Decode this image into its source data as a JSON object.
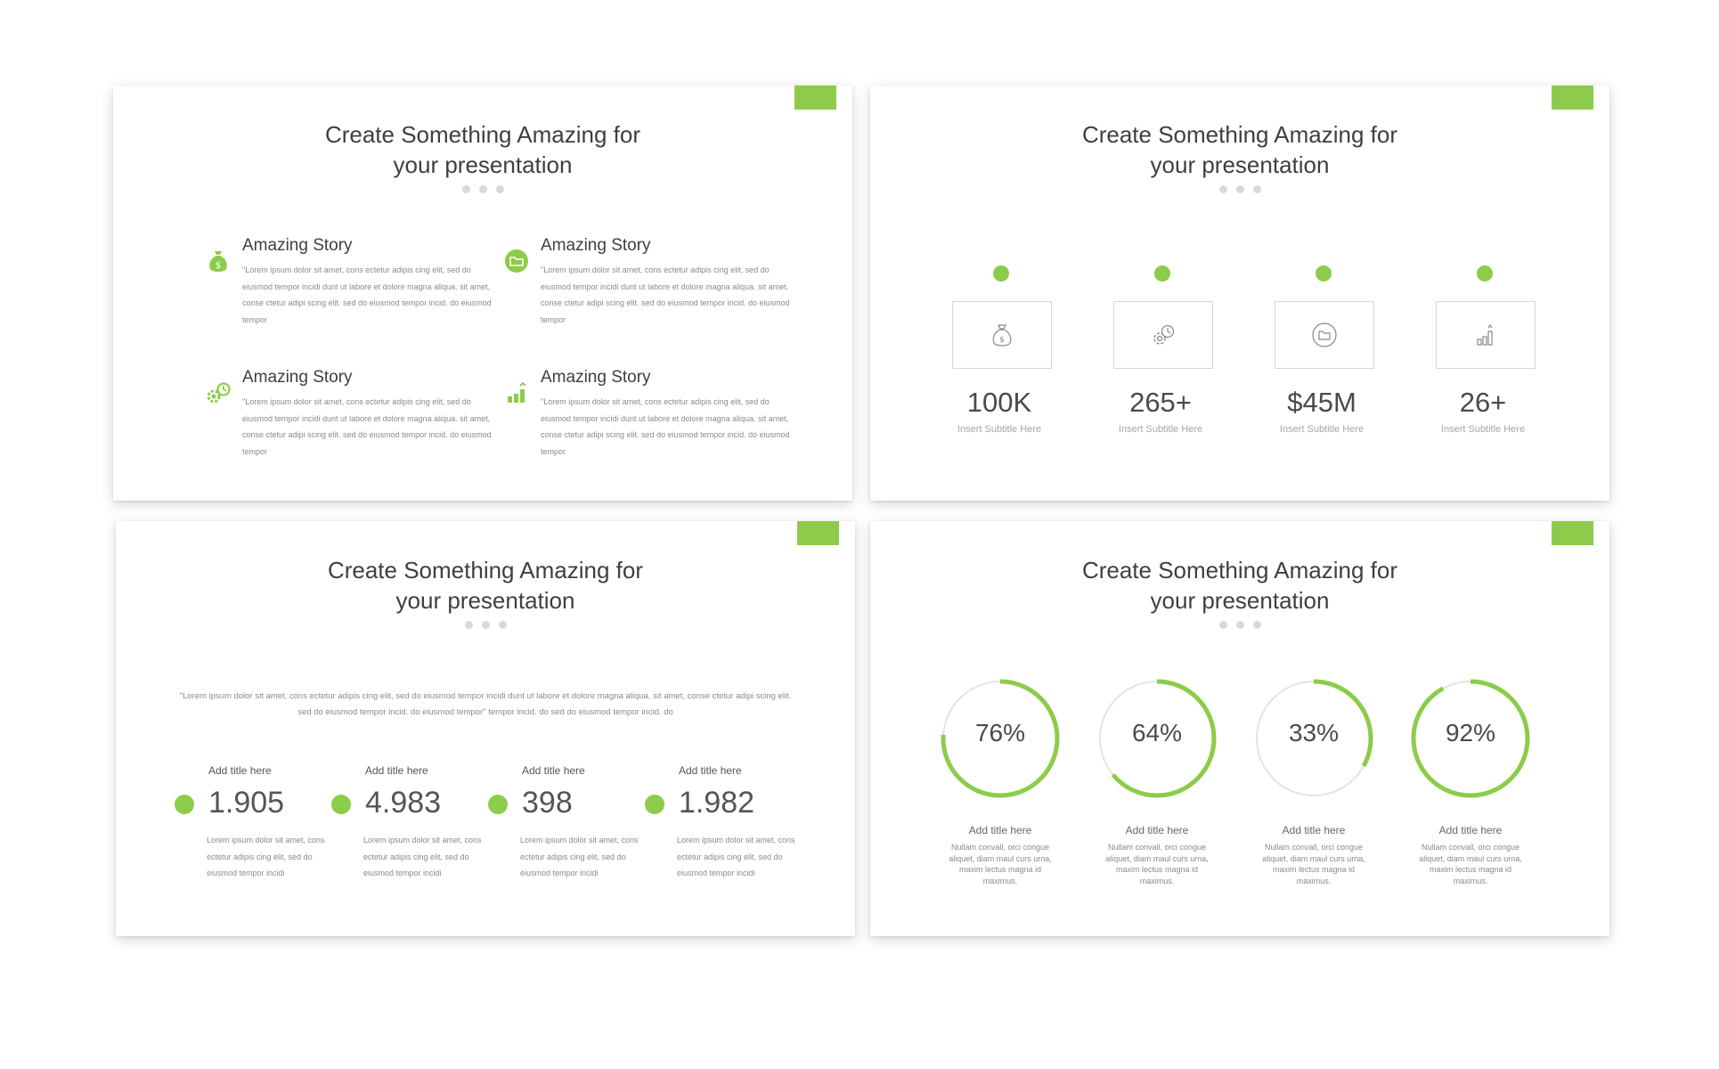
{
  "slide_title_line1": "Create Something Amazing for",
  "slide_title_line2": "your presentation",
  "accent_color": "#8ccc4a",
  "slide1": {
    "stories": [
      {
        "icon": "money-bag-icon",
        "title": "Amazing Story",
        "text": "\"Lorem ipsum dolor sit amet, cons ectetur adipis cing elit, sed do eiusmod tempor incidi dunt ut labore et dolore magna aliqua. sit amet, conse ctetur adipi scing elit. sed do eiusmod tempor incid. do eiusmod tempor"
      },
      {
        "icon": "folder-icon",
        "title": "Amazing Story",
        "text": "\"Lorem ipsum dolor sit amet, cons ectetur adipis cing elit, sed do eiusmod tempor incidi dunt ut labore et dolore magna aliqua. sit amet, conse ctetur adipi scing elit. sed do eiusmod tempor incid. do eiusmod tempor"
      },
      {
        "icon": "gears-icon",
        "title": "Amazing Story",
        "text": "\"Lorem ipsum dolor sit amet, cons ectetur adipis cing elit, sed do eiusmod tempor incidi dunt ut labore et dolore magna aliqua. sit amet, conse ctetur adipi scing elit. sed do eiusmod tempor incid. do eiusmod tempor"
      },
      {
        "icon": "bar-growth-icon",
        "title": "Amazing Story",
        "text": "\"Lorem ipsum dolor sit amet, cons ectetur adipis cing elit, sed do eiusmod tempor incidi dunt ut labore et dolore magna aliqua. sit amet, conse ctetur adipi scing elit. sed do eiusmod tempor incid. do eiusmod tempor"
      }
    ]
  },
  "slide2": {
    "stats": [
      {
        "icon": "money-bag-icon",
        "value": "100K",
        "subtitle": "Insert Subtitle Here"
      },
      {
        "icon": "gears-icon",
        "value": "265+",
        "subtitle": "Insert Subtitle Here"
      },
      {
        "icon": "folder-icon",
        "value": "$45M",
        "subtitle": "Insert Subtitle Here"
      },
      {
        "icon": "bar-growth-icon",
        "value": "26+",
        "subtitle": "Insert Subtitle Here"
      }
    ]
  },
  "slide3": {
    "quote": "\"Lorem ipsum dolor sit amet, cons ectetur adipis cing elit, sed do eiusmod tempor incidi dunt ut labore et dolore magna aliqua. sit amet, conse ctetur adipi scing elit. sed do eiusmod tempor incid. do eiusmod tempor\" tempor incid. do sed do eiusmod tempor incid. do",
    "numbers": [
      {
        "label": "Add title here",
        "value": "1.905",
        "text": "Lorem ipsum dolor sit amet, cons ectetur adipis cing elit, sed do eiusmod tempor incidi"
      },
      {
        "label": "Add title here",
        "value": "4.983",
        "text": "Lorem ipsum dolor sit amet, cons ectetur adipis cing elit, sed do eiusmod tempor incidi"
      },
      {
        "label": "Add title here",
        "value": "398",
        "text": "Lorem ipsum dolor sit amet, cons ectetur adipis cing elit, sed do eiusmod tempor incidi"
      },
      {
        "label": "Add title here",
        "value": "1.982",
        "text": "Lorem ipsum dolor sit amet, cons ectetur adipis cing elit, sed do eiusmod tempor incidi"
      }
    ]
  },
  "slide4": {
    "rings": [
      {
        "percent": 76,
        "label": "76%",
        "title": "Add title here",
        "text": "Nullam convall, orci congue aliquet, diam maul curs urna, maxim lectus magna id maximus."
      },
      {
        "percent": 64,
        "label": "64%",
        "title": "Add title here",
        "text": "Nullam convall, orci congue aliquet, diam maul curs urna, maxim lectus magna id maximus."
      },
      {
        "percent": 33,
        "label": "33%",
        "title": "Add title here",
        "text": "Nullam convall, orci congue aliquet, diam maul curs urna, maxim lectus magna id maximus."
      },
      {
        "percent": 92,
        "label": "92%",
        "title": "Add title here",
        "text": "Nullam convall, orci congue aliquet, diam maul curs urna, maxim lectus magna id maximus."
      }
    ]
  }
}
